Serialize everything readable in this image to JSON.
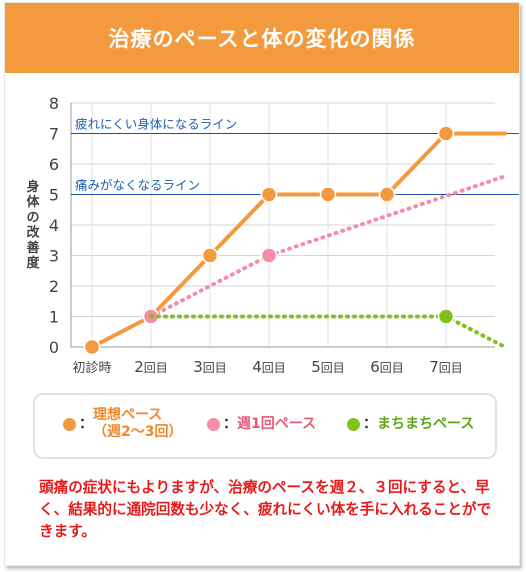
{
  "title": "治療のペースと体の変化の関係",
  "colors": {
    "header": "#f39a3f",
    "ideal": "#f39a3f",
    "weekly": "#f58ea4",
    "irregular": "#7fc21b",
    "threshold": "#1e4f9f",
    "note": "#e81b1b"
  },
  "chart_data": {
    "type": "line",
    "ylabel": "身体の改善度",
    "xlabel": "",
    "ylim": [
      0,
      8
    ],
    "yticks": [
      "0",
      "1",
      "2",
      "3",
      "4",
      "5",
      "6",
      "7",
      "8"
    ],
    "categories": [
      "初診時",
      "2回目",
      "3回目",
      "4回目",
      "5回目",
      "6回目",
      "7回目"
    ],
    "grid": true,
    "reference_lines": [
      {
        "label": "疲れにくい身体になるライン",
        "y": 7
      },
      {
        "label": "痛みがなくなるライン",
        "y": 5
      }
    ],
    "series": [
      {
        "name": "理想ペース（週2〜3回）",
        "x": [
          0,
          1,
          2,
          3,
          4,
          5,
          6,
          7
        ],
        "values": [
          0,
          1,
          3,
          5,
          5,
          5,
          7,
          7
        ],
        "markers": [
          0,
          1,
          2,
          3,
          4,
          5,
          6
        ],
        "style": "solid"
      },
      {
        "name": "週1回ペース",
        "x": [
          1,
          3,
          7
        ],
        "values": [
          1,
          3,
          5.6
        ],
        "markers": [
          1,
          3
        ],
        "style": "dotted"
      },
      {
        "name": "まちまちペース",
        "x": [
          1,
          6,
          7
        ],
        "values": [
          1,
          1,
          0
        ],
        "markers": [
          6
        ],
        "style": "dotted"
      }
    ]
  },
  "legend": {
    "ideal_line1": "理想ペース",
    "ideal_line2": "（週2〜3回）",
    "weekly": "週1回ペース",
    "irregular": "まちまちペース",
    "colon": "："
  },
  "note": "頭痛の症状にもよりますが、治療のペースを週２、３回にすると、早く、結果的に通院回数も少なく、疲れにくい体を手に入れることができます。"
}
